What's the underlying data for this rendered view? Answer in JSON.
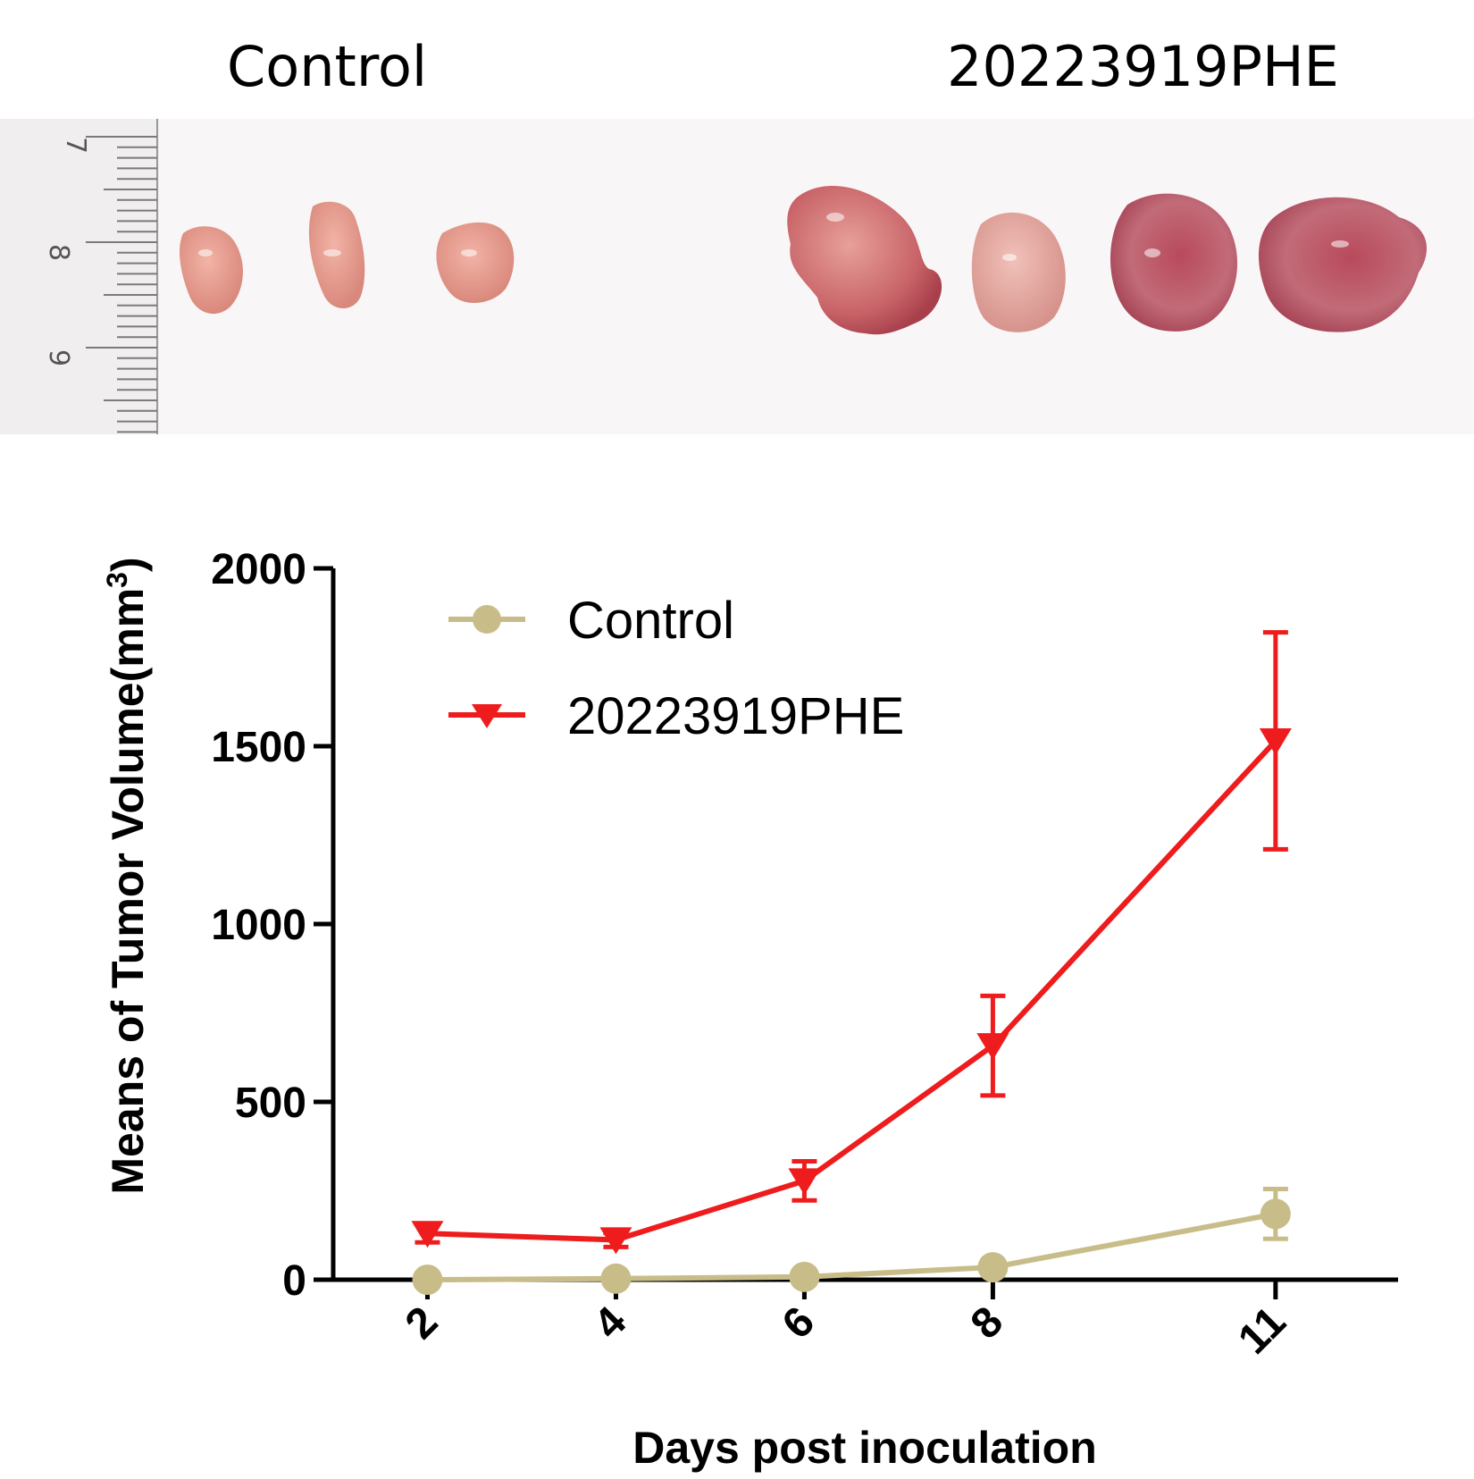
{
  "photo": {
    "labels": {
      "control": "Control",
      "treated": "20223919PHE"
    },
    "ruler_marks": [
      "7",
      "8",
      "9"
    ]
  },
  "colors": {
    "control": "#c8bd89",
    "treated": "#ee1c1c",
    "axis": "#000000"
  },
  "chart_data": {
    "type": "line",
    "xlabel": "Days post inoculation",
    "ylabel": "Means of Tumor Volume(mm",
    "ylabel_superscript": "3",
    "ylabel_suffix": ")",
    "categories": [
      "2",
      "4",
      "6",
      "8",
      "11"
    ],
    "ylim": [
      0,
      2000
    ],
    "yticks": [
      0,
      500,
      1000,
      1500,
      2000
    ],
    "legend_position": "top-left",
    "series": [
      {
        "name": "Control",
        "marker": "circle",
        "color": "#c8bd89",
        "values": [
          0,
          3,
          8,
          35,
          185
        ],
        "errors": [
          0,
          0,
          0,
          0,
          70
        ]
      },
      {
        "name": "20223919PHE",
        "marker": "triangle-down",
        "color": "#ee1c1c",
        "values": [
          130,
          112,
          278,
          658,
          1515
        ],
        "errors": [
          25,
          20,
          55,
          140,
          305
        ]
      }
    ]
  }
}
